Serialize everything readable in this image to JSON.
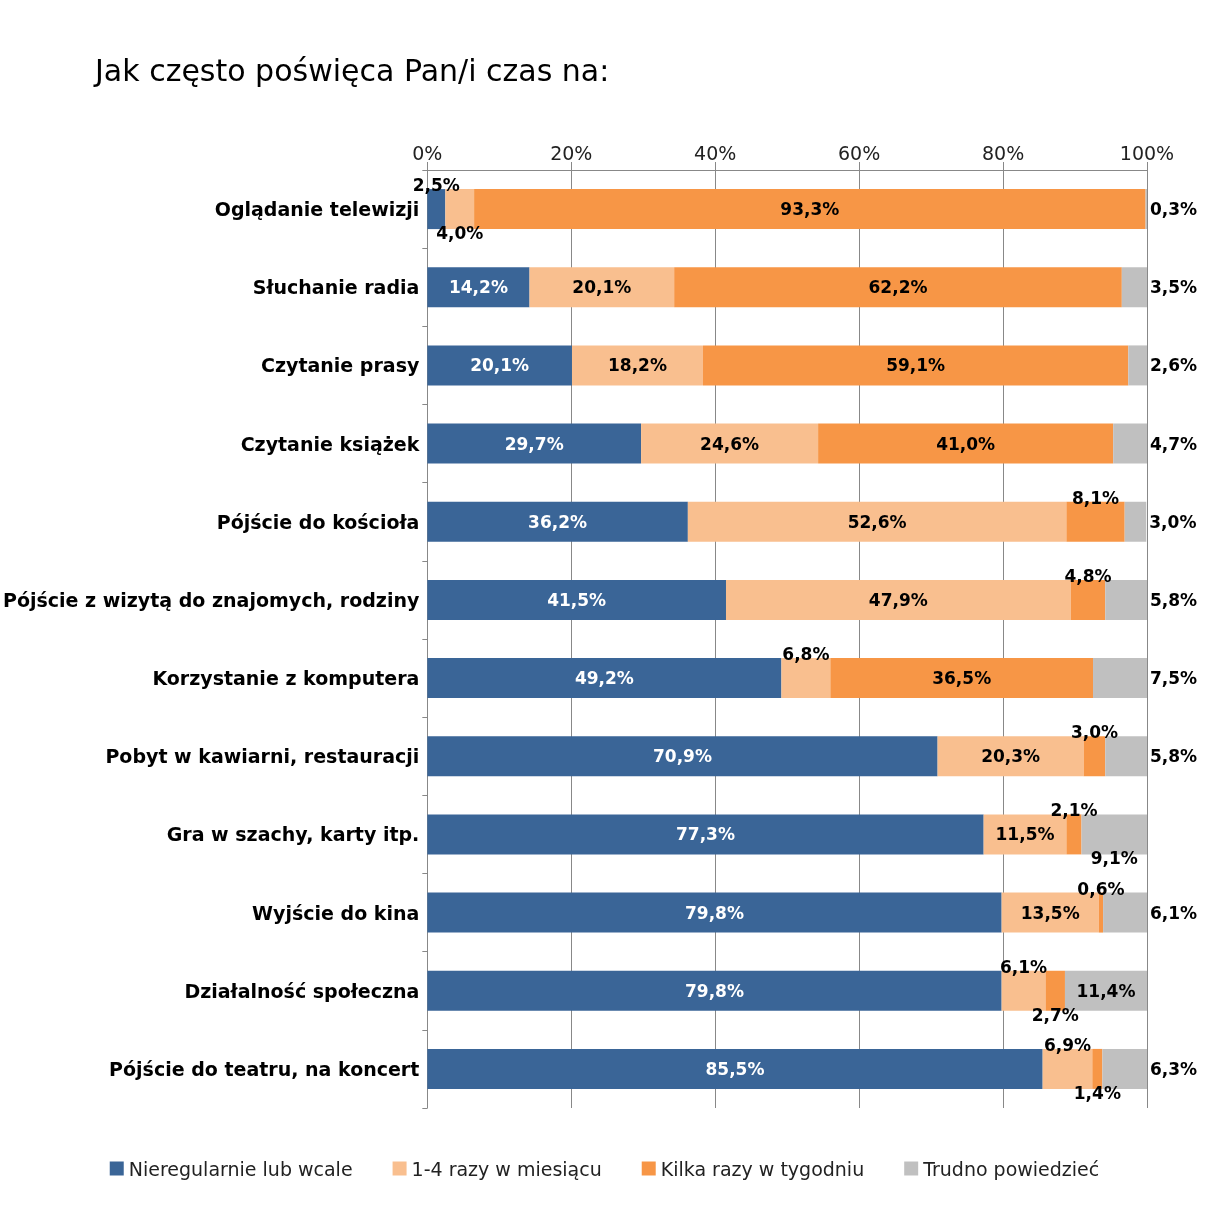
{
  "chart_data": {
    "type": "bar",
    "orientation": "horizontal",
    "stacked": true,
    "title": "Jak często poświęca Pan/i czas na:",
    "categories": [
      "Oglądanie telewizji",
      "Słuchanie radia",
      "Czytanie prasy",
      "Czytanie książek",
      "Pójście do kościoła",
      "Pójście z wizytą do znajomych, rodziny",
      "Korzystanie z komputera",
      "Pobyt w kawiarni, restauracji",
      "Gra w szachy, karty itp.",
      "Wyjście do kina",
      "Działalność społeczna",
      "Pójście do teatru, na koncert"
    ],
    "series": [
      {
        "name": "Nieregularnie lub wcale",
        "color": "#3a6597",
        "values": [
          2.5,
          14.2,
          20.1,
          29.7,
          36.2,
          41.5,
          49.2,
          70.9,
          77.3,
          79.8,
          79.8,
          85.5
        ],
        "value_labels": [
          "2,5%",
          "14,2%",
          "20,1%",
          "29,7%",
          "36,2%",
          "41,5%",
          "49,2%",
          "70,9%",
          "77,3%",
          "79,8%",
          "79,8%",
          "85,5%"
        ]
      },
      {
        "name": "1-4 razy w miesiącu",
        "color": "#f9bf8f",
        "values": [
          4.0,
          20.1,
          18.2,
          24.6,
          52.6,
          47.9,
          6.8,
          20.3,
          11.5,
          13.5,
          6.1,
          6.9
        ],
        "value_labels": [
          "4,0%",
          "20,1%",
          "18,2%",
          "24,6%",
          "52,6%",
          "47,9%",
          "6,8%",
          "20,3%",
          "11,5%",
          "13,5%",
          "6,1%",
          "6,9%"
        ]
      },
      {
        "name": "Kilka razy w tygodniu",
        "color": "#f79646",
        "values": [
          93.3,
          62.2,
          59.1,
          41.0,
          8.1,
          4.8,
          36.5,
          3.0,
          2.1,
          0.6,
          2.7,
          1.4
        ],
        "value_labels": [
          "93,3%",
          "62,2%",
          "59,1%",
          "41,0%",
          "8,1%",
          "4,8%",
          "36,5%",
          "3,0%",
          "2,1%",
          "0,6%",
          "2,7%",
          "1,4%"
        ]
      },
      {
        "name": "Trudno powiedzieć",
        "color": "#c0c0c0",
        "values": [
          0.3,
          3.5,
          2.6,
          4.7,
          3.0,
          5.8,
          7.5,
          5.8,
          9.1,
          6.1,
          11.4,
          6.3
        ],
        "value_labels": [
          "0,3%",
          "3,5%",
          "2,6%",
          "4,7%",
          "3,0%",
          "5,8%",
          "7,5%",
          "5,8%",
          "9,1%",
          "6,1%",
          "11,4%",
          "6,3%"
        ]
      }
    ],
    "xlim": [
      0,
      100
    ],
    "xticks": [
      {
        "value": 0,
        "label": "0%"
      },
      {
        "value": 20,
        "label": "20%"
      },
      {
        "value": 40,
        "label": "40%"
      },
      {
        "value": 60,
        "label": "60%"
      },
      {
        "value": 80,
        "label": "80%"
      },
      {
        "value": 100,
        "label": "100%"
      }
    ],
    "grid": "x",
    "legend": "bottom"
  }
}
